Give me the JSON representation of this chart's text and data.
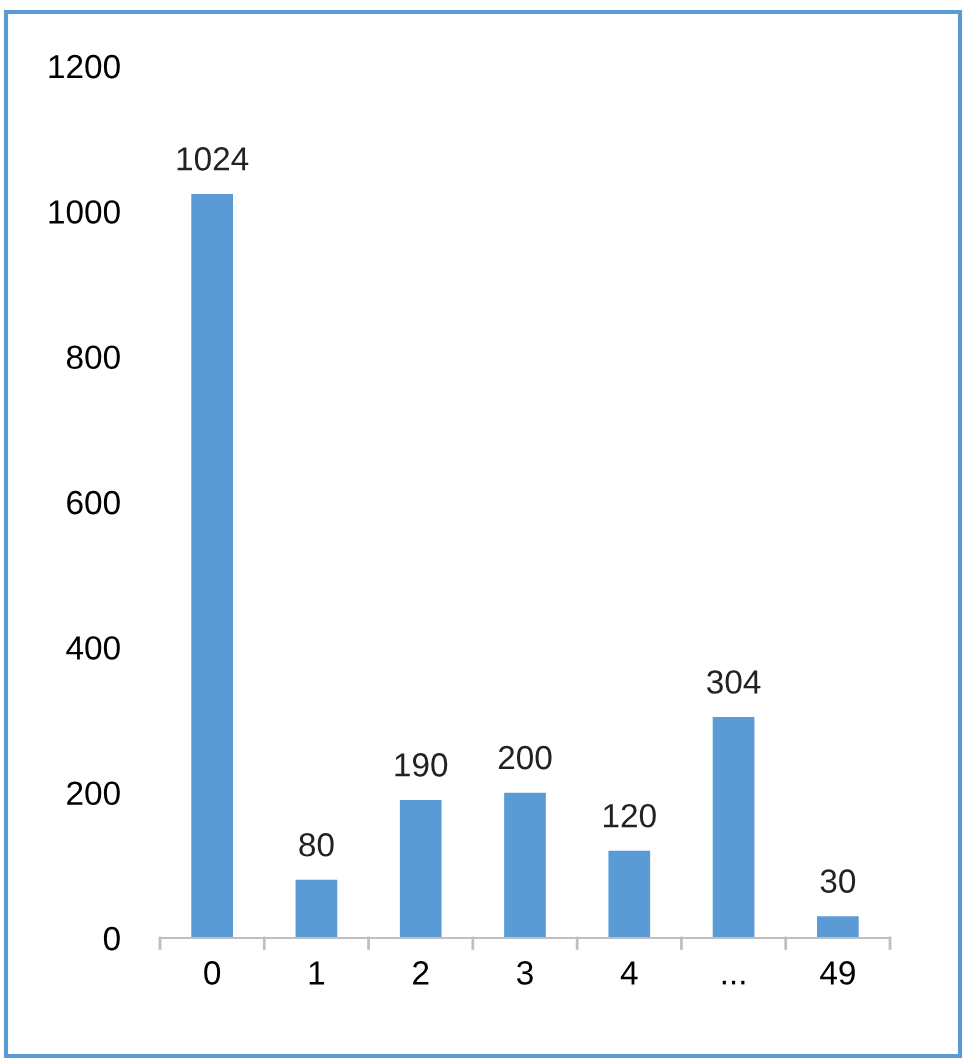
{
  "chart_data": {
    "type": "bar",
    "categories": [
      "0",
      "1",
      "2",
      "3",
      "4",
      "...",
      "49"
    ],
    "values": [
      1024,
      80,
      190,
      200,
      120,
      304,
      30
    ],
    "color": "#5b9bd5",
    "ylim": [
      0,
      1200
    ],
    "yticks": [
      0,
      200,
      400,
      600,
      800,
      1000,
      1200
    ],
    "data_labels": true,
    "grid": false,
    "legend": false
  }
}
